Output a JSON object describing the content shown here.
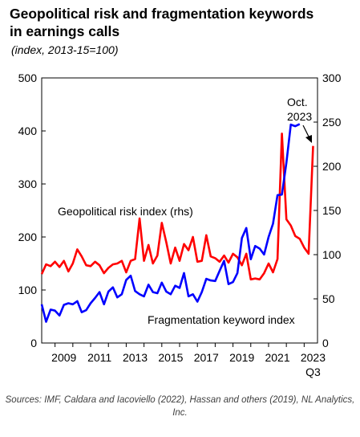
{
  "chart_data": {
    "type": "line",
    "title_lines": [
      "Geopolitical risk and fragmentation keywords",
      "in earnings calls"
    ],
    "subtitle": "(index, 2013-15=100)",
    "x_tick_labels": [
      "2009",
      "2011",
      "2013",
      "2015",
      "2017",
      "2019",
      "2021",
      "2023"
    ],
    "x_tick_sublabel": "Q3",
    "x_range": [
      2008.25,
      2023.75
    ],
    "y_left": {
      "range": [
        0,
        500
      ],
      "ticks": [
        0,
        100,
        200,
        300,
        400,
        500
      ]
    },
    "y_right": {
      "range": [
        0,
        300
      ],
      "ticks": [
        0,
        50,
        100,
        150,
        200,
        250,
        300
      ]
    },
    "series": [
      {
        "name": "Geopolitical risk index (rhs)",
        "axis": "right",
        "color": "#ff0000",
        "label_text": "Geopolitical risk index (rhs)",
        "points": [
          [
            2008.25,
            78
          ],
          [
            2008.5,
            89
          ],
          [
            2008.75,
            87
          ],
          [
            2009.0,
            92
          ],
          [
            2009.25,
            86
          ],
          [
            2009.5,
            93
          ],
          [
            2009.75,
            81
          ],
          [
            2010.0,
            90
          ],
          [
            2010.25,
            106
          ],
          [
            2010.5,
            98
          ],
          [
            2010.75,
            88
          ],
          [
            2011.0,
            87
          ],
          [
            2011.25,
            92
          ],
          [
            2011.5,
            88
          ],
          [
            2011.75,
            79
          ],
          [
            2012.0,
            85
          ],
          [
            2012.25,
            89
          ],
          [
            2012.5,
            90
          ],
          [
            2012.75,
            93
          ],
          [
            2013.0,
            80
          ],
          [
            2013.25,
            93
          ],
          [
            2013.5,
            95
          ],
          [
            2013.75,
            141
          ],
          [
            2014.0,
            93
          ],
          [
            2014.25,
            111
          ],
          [
            2014.5,
            90
          ],
          [
            2014.75,
            99
          ],
          [
            2015.0,
            136
          ],
          [
            2015.25,
            114
          ],
          [
            2015.5,
            90
          ],
          [
            2015.75,
            108
          ],
          [
            2016.0,
            93
          ],
          [
            2016.25,
            112
          ],
          [
            2016.5,
            105
          ],
          [
            2016.75,
            120
          ],
          [
            2017.0,
            92
          ],
          [
            2017.25,
            93
          ],
          [
            2017.5,
            122
          ],
          [
            2017.75,
            98
          ],
          [
            2018.0,
            96
          ],
          [
            2018.25,
            92
          ],
          [
            2018.5,
            99
          ],
          [
            2018.75,
            91
          ],
          [
            2019.0,
            101
          ],
          [
            2019.25,
            97
          ],
          [
            2019.5,
            88
          ],
          [
            2019.75,
            101
          ],
          [
            2020.0,
            72
          ],
          [
            2020.25,
            73
          ],
          [
            2020.5,
            72
          ],
          [
            2020.75,
            79
          ],
          [
            2021.0,
            90
          ],
          [
            2021.25,
            80
          ],
          [
            2021.5,
            95
          ],
          [
            2021.75,
            237
          ],
          [
            2022.0,
            140
          ],
          [
            2022.25,
            133
          ],
          [
            2022.5,
            121
          ],
          [
            2022.75,
            118
          ],
          [
            2023.0,
            108
          ],
          [
            2023.25,
            101
          ],
          [
            2023.5,
            223
          ]
        ]
      },
      {
        "name": "Fragmentation keyword index",
        "axis": "left",
        "color": "#0000ff",
        "label_text": "Fragmentation keyword index",
        "points": [
          [
            2008.25,
            73
          ],
          [
            2008.5,
            40
          ],
          [
            2008.75,
            63
          ],
          [
            2009.0,
            61
          ],
          [
            2009.25,
            52
          ],
          [
            2009.5,
            72
          ],
          [
            2009.75,
            75
          ],
          [
            2010.0,
            73
          ],
          [
            2010.25,
            79
          ],
          [
            2010.5,
            58
          ],
          [
            2010.75,
            62
          ],
          [
            2011.0,
            75
          ],
          [
            2011.25,
            85
          ],
          [
            2011.5,
            96
          ],
          [
            2011.75,
            73
          ],
          [
            2012.0,
            97
          ],
          [
            2012.25,
            105
          ],
          [
            2012.5,
            86
          ],
          [
            2012.75,
            92
          ],
          [
            2013.0,
            119
          ],
          [
            2013.25,
            127
          ],
          [
            2013.5,
            98
          ],
          [
            2013.75,
            92
          ],
          [
            2014.0,
            88
          ],
          [
            2014.25,
            110
          ],
          [
            2014.5,
            96
          ],
          [
            2014.75,
            94
          ],
          [
            2015.0,
            114
          ],
          [
            2015.25,
            97
          ],
          [
            2015.5,
            92
          ],
          [
            2015.75,
            108
          ],
          [
            2016.0,
            104
          ],
          [
            2016.25,
            132
          ],
          [
            2016.5,
            88
          ],
          [
            2016.75,
            92
          ],
          [
            2017.0,
            78
          ],
          [
            2017.25,
            96
          ],
          [
            2017.5,
            121
          ],
          [
            2017.75,
            118
          ],
          [
            2018.0,
            117
          ],
          [
            2018.25,
            136
          ],
          [
            2018.5,
            155
          ],
          [
            2018.75,
            111
          ],
          [
            2019.0,
            115
          ],
          [
            2019.25,
            132
          ],
          [
            2019.5,
            198
          ],
          [
            2019.75,
            217
          ],
          [
            2020.0,
            158
          ],
          [
            2020.25,
            183
          ],
          [
            2020.5,
            178
          ],
          [
            2020.75,
            167
          ],
          [
            2021.0,
            200
          ],
          [
            2021.25,
            225
          ],
          [
            2021.5,
            279
          ],
          [
            2021.75,
            280
          ],
          [
            2022.0,
            340
          ],
          [
            2022.25,
            412
          ],
          [
            2022.5,
            409
          ],
          [
            2022.75,
            413
          ]
        ]
      }
    ],
    "annotation": {
      "text_lines": [
        "Oct.",
        "2023"
      ]
    },
    "source": "Sources: IMF, Caldara and Iacoviello (2022), Hassan and others (2019), NL Analytics, Inc."
  }
}
